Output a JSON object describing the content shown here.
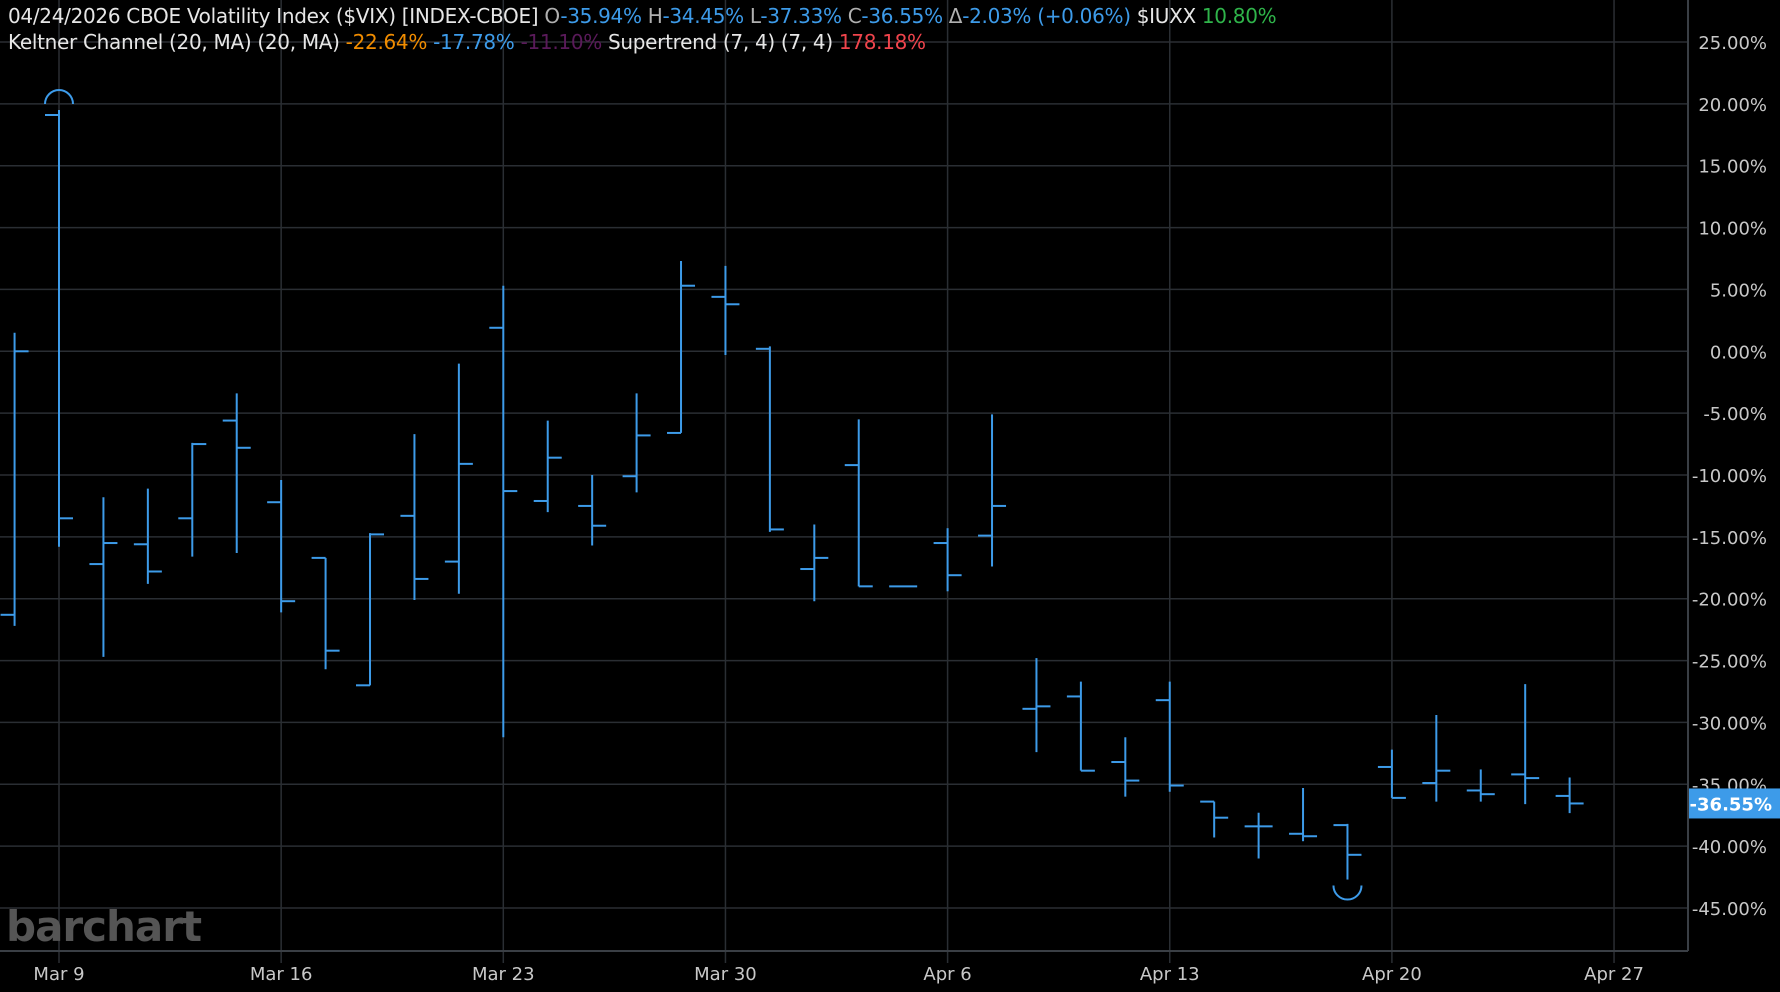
{
  "header": {
    "date": "04/24/2026",
    "symbol_title": "CBOE Volatility Index ($VIX) [INDEX-CBOE]",
    "open_label": "O",
    "open": "-35.94%",
    "high_label": "H",
    "high": "-34.45%",
    "low_label": "L",
    "low": "-37.33%",
    "close_label": "C",
    "close": "-36.55%",
    "change_label": "Δ",
    "change": "-2.03% (+0.06%)",
    "compare_symbol": "$IUXX",
    "compare_value": "10.80%"
  },
  "indicators": {
    "keltner_name": "Keltner Channel (20, MA)",
    "keltner_params": "(20, MA)",
    "keltner_upper": "-22.64%",
    "keltner_mid": "-17.78%",
    "keltner_lower": "-11.10%",
    "supertrend_name": "Supertrend (7, 4)",
    "supertrend_params": "(7, 4)",
    "supertrend_value": "178.18%"
  },
  "logo": "barchart",
  "colors": {
    "background": "#000000",
    "bars": "#3d9be9",
    "grid": "#2a2e33",
    "last_price_badge": "#3d9be9"
  },
  "chart_data": {
    "type": "ohlc",
    "ylabel_unit": "%",
    "ylim": [
      -45,
      25
    ],
    "yticks": [
      "25.00%",
      "20.00%",
      "15.00%",
      "10.00%",
      "5.00%",
      "0.00%",
      "-5.00%",
      "-10.00%",
      "-15.00%",
      "-20.00%",
      "-25.00%",
      "-30.00%",
      "-35.00%",
      "-40.00%",
      "-45.00%"
    ],
    "ytick_values": [
      25,
      20,
      15,
      10,
      5,
      0,
      -5,
      -10,
      -15,
      -20,
      -25,
      -30,
      -35,
      -40,
      -45
    ],
    "xticks": [
      "Mar 9",
      "Mar 16",
      "Mar 23",
      "Mar 30",
      "Apr 6",
      "Apr 13",
      "Apr 20",
      "Apr 27"
    ],
    "xtick_dates": [
      "2026-03-09",
      "2026-03-16",
      "2026-03-23",
      "2026-03-30",
      "2026-04-06",
      "2026-04-13",
      "2026-04-20",
      "2026-04-27"
    ],
    "grid": true,
    "last_value": "-36.55%",
    "bars": [
      {
        "date": "2026-03-06",
        "o": -21.3,
        "h": 1.5,
        "l": -22.2,
        "c": 0.0
      },
      {
        "date": "2026-03-09",
        "o": 19.1,
        "h": 19.5,
        "l": -15.8,
        "c": -13.5
      },
      {
        "date": "2026-03-10",
        "o": -17.2,
        "h": -11.8,
        "l": -24.7,
        "c": -15.5
      },
      {
        "date": "2026-03-11",
        "o": -15.6,
        "h": -11.1,
        "l": -18.8,
        "c": -17.8
      },
      {
        "date": "2026-03-12",
        "o": -13.5,
        "h": -7.4,
        "l": -16.6,
        "c": -7.5
      },
      {
        "date": "2026-03-13",
        "o": -5.6,
        "h": -3.4,
        "l": -16.3,
        "c": -7.8
      },
      {
        "date": "2026-03-16",
        "o": -12.2,
        "h": -10.4,
        "l": -21.1,
        "c": -20.2
      },
      {
        "date": "2026-03-17",
        "o": -16.7,
        "h": -16.7,
        "l": -25.7,
        "c": -24.2
      },
      {
        "date": "2026-03-18",
        "o": -27.0,
        "h": -14.7,
        "l": -27.0,
        "c": -14.8
      },
      {
        "date": "2026-03-19",
        "o": -13.3,
        "h": -6.7,
        "l": -20.1,
        "c": -18.4
      },
      {
        "date": "2026-03-20",
        "o": -17.0,
        "h": -1.0,
        "l": -19.6,
        "c": -9.1
      },
      {
        "date": "2026-03-23",
        "o": 1.9,
        "h": 5.3,
        "l": -31.2,
        "c": -11.3
      },
      {
        "date": "2026-03-24",
        "o": -12.1,
        "h": -5.6,
        "l": -13.0,
        "c": -8.6
      },
      {
        "date": "2026-03-25",
        "o": -12.5,
        "h": -10.0,
        "l": -15.7,
        "c": -14.1
      },
      {
        "date": "2026-03-26",
        "o": -10.1,
        "h": -3.4,
        "l": -11.4,
        "c": -6.8
      },
      {
        "date": "2026-03-27",
        "o": -6.6,
        "h": 7.3,
        "l": -6.6,
        "c": 5.3
      },
      {
        "date": "2026-03-30",
        "o": 4.4,
        "h": 6.9,
        "l": -0.3,
        "c": 3.8
      },
      {
        "date": "2026-03-31",
        "o": 0.2,
        "h": 0.4,
        "l": -14.6,
        "c": -14.4
      },
      {
        "date": "2026-04-01",
        "o": -17.6,
        "h": -14.0,
        "l": -20.2,
        "c": -16.7
      },
      {
        "date": "2026-04-02",
        "o": -9.2,
        "h": -5.5,
        "l": -19.0,
        "c": -19.0
      },
      {
        "date": "2026-04-03",
        "o": -19.0,
        "h": -19.0,
        "l": -19.0,
        "c": -19.0
      },
      {
        "date": "2026-04-06",
        "o": -15.5,
        "h": -14.3,
        "l": -19.4,
        "c": -18.1
      },
      {
        "date": "2026-04-07",
        "o": -14.9,
        "h": -5.1,
        "l": -17.4,
        "c": -12.5
      },
      {
        "date": "2026-04-08",
        "o": -28.9,
        "h": -24.8,
        "l": -32.4,
        "c": -28.7
      },
      {
        "date": "2026-04-09",
        "o": -27.9,
        "h": -26.7,
        "l": -33.9,
        "c": -33.9
      },
      {
        "date": "2026-04-10",
        "o": -33.2,
        "h": -31.2,
        "l": -36.0,
        "c": -34.7
      },
      {
        "date": "2026-04-13",
        "o": -28.2,
        "h": -26.7,
        "l": -35.6,
        "c": -35.1
      },
      {
        "date": "2026-04-14",
        "o": -36.4,
        "h": -36.4,
        "l": -39.3,
        "c": -37.7
      },
      {
        "date": "2026-04-15",
        "o": -38.4,
        "h": -37.3,
        "l": -41.0,
        "c": -38.4
      },
      {
        "date": "2026-04-16",
        "o": -39.0,
        "h": -35.3,
        "l": -39.6,
        "c": -39.2
      },
      {
        "date": "2026-04-17",
        "o": -38.3,
        "h": -38.2,
        "l": -42.7,
        "c": -40.7
      },
      {
        "date": "2026-04-20",
        "o": -33.6,
        "h": -32.2,
        "l": -36.1,
        "c": -36.1
      },
      {
        "date": "2026-04-21",
        "o": -34.9,
        "h": -29.4,
        "l": -36.4,
        "c": -33.9
      },
      {
        "date": "2026-04-22",
        "o": -35.5,
        "h": -33.8,
        "l": -36.4,
        "c": -35.8
      },
      {
        "date": "2026-04-23",
        "o": -34.2,
        "h": -26.9,
        "l": -36.6,
        "c": -34.5
      },
      {
        "date": "2026-04-24",
        "o": -35.94,
        "h": -34.45,
        "l": -37.33,
        "c": -36.55
      }
    ]
  }
}
